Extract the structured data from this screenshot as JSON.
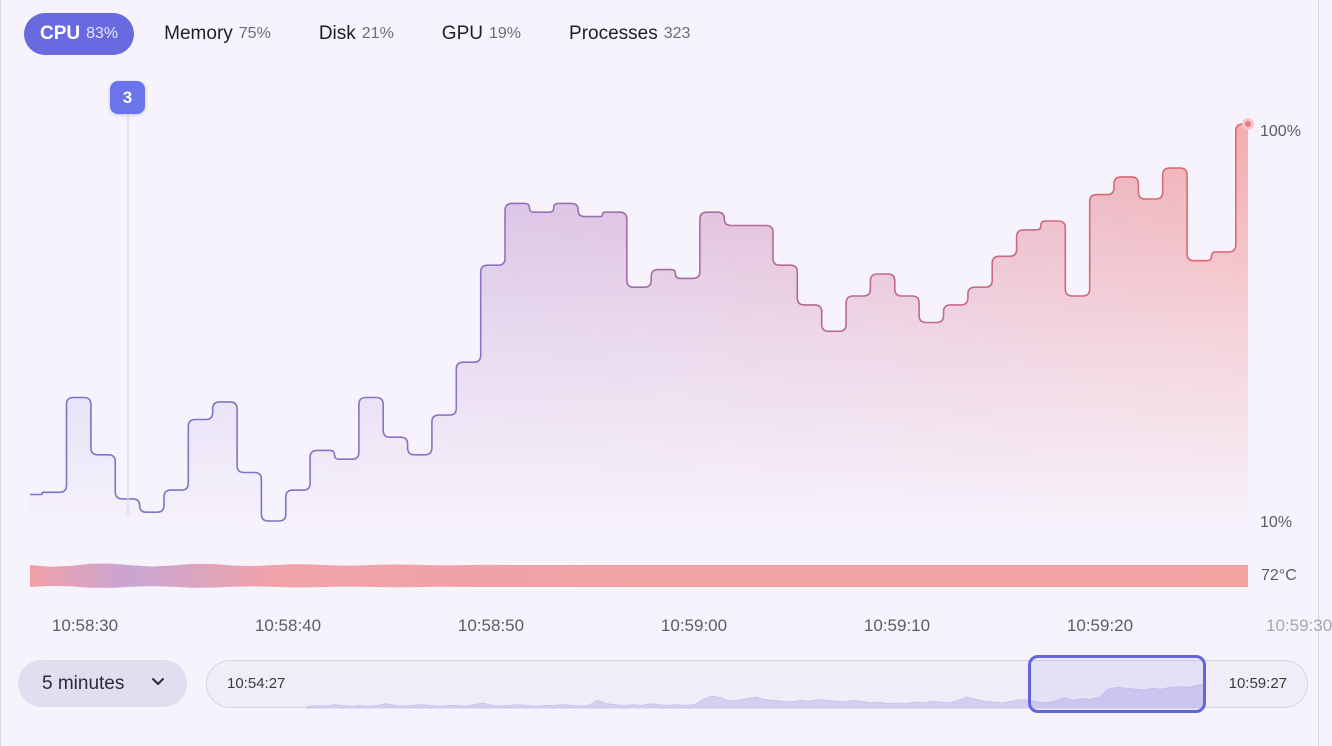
{
  "tabs": [
    {
      "label": "CPU",
      "value": "83%",
      "active": true
    },
    {
      "label": "Memory",
      "value": "75%",
      "active": false
    },
    {
      "label": "Disk",
      "value": "21%",
      "active": false
    },
    {
      "label": "GPU",
      "value": "19%",
      "active": false
    },
    {
      "label": "Processes",
      "value": "323",
      "active": false
    }
  ],
  "marker": {
    "label": "3"
  },
  "chart_data": {
    "type": "area",
    "y_unit": "%",
    "ylim": [
      10,
      100
    ],
    "y_tick_labels": [
      "100%",
      "10%"
    ],
    "x_tick_labels": [
      "10:58:30",
      "10:58:40",
      "10:58:50",
      "10:59:00",
      "10:59:10",
      "10:59:20",
      "10:59:30"
    ],
    "series": [
      {
        "values": [
          16,
          16.5,
          38,
          25,
          15,
          12,
          17,
          33,
          37,
          21,
          10,
          17,
          26,
          24,
          38,
          29,
          25,
          34,
          46,
          68,
          82,
          80,
          82,
          79,
          80,
          63,
          67,
          65,
          80,
          77,
          77,
          68,
          59,
          53,
          61,
          66,
          61,
          55,
          59,
          63,
          70,
          76,
          78,
          61,
          84,
          88,
          83,
          90,
          69,
          71,
          100
        ]
      }
    ],
    "temperature_label": "72°C",
    "grid": false,
    "legend": "none"
  },
  "range_select": {
    "label": "5 minutes"
  },
  "overview": {
    "start_label": "10:54:27",
    "end_label": "10:59:27",
    "values": [
      2,
      3,
      2,
      4,
      3,
      2,
      3,
      2,
      3,
      5,
      3,
      2,
      3,
      4,
      3,
      2,
      3,
      3,
      2,
      4,
      6,
      3,
      2,
      3,
      4,
      3,
      2,
      3,
      3,
      4,
      3,
      2,
      3,
      9,
      5,
      4,
      3,
      4,
      3,
      5,
      4,
      3,
      4,
      3,
      4,
      10,
      14,
      12,
      8,
      9,
      11,
      13,
      10,
      9,
      8,
      7,
      9,
      8,
      10,
      9,
      8,
      7,
      9,
      8,
      6,
      7,
      5,
      6,
      5,
      7,
      6,
      8,
      7,
      6,
      9,
      13,
      10,
      8,
      7,
      6,
      8,
      10,
      9,
      7,
      6,
      8,
      12,
      9,
      11,
      10,
      13,
      22,
      24,
      23,
      22,
      21,
      23,
      22,
      24,
      25,
      24,
      26,
      28
    ]
  },
  "colors": {
    "accent": "#6a6ae0",
    "line_low": "#7775c8",
    "line_high": "#e16a6e",
    "temp_bar": "#f2a4a3"
  }
}
